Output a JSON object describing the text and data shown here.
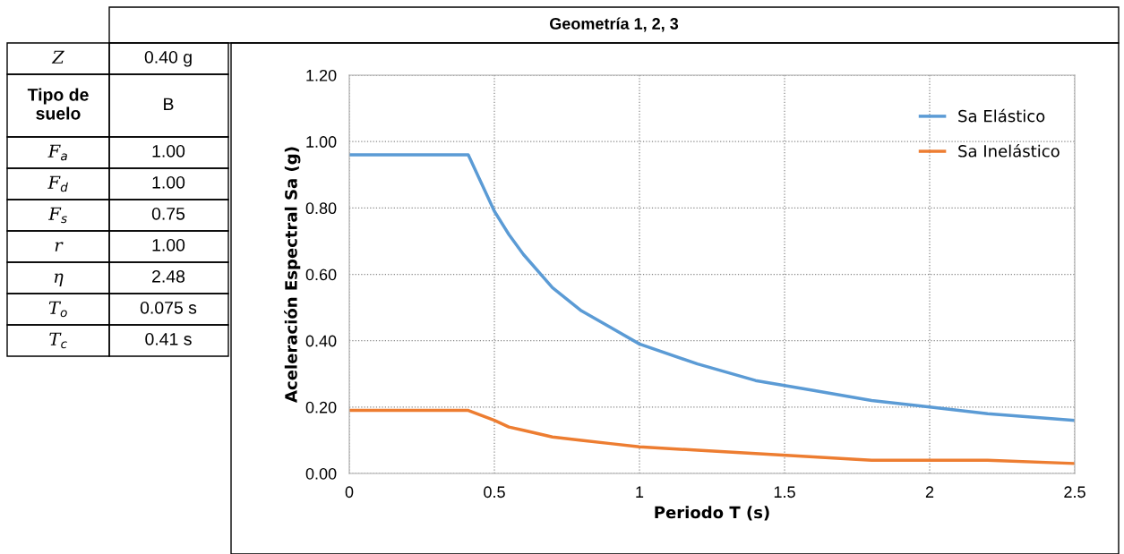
{
  "chart_data": {
    "type": "line",
    "title": "Geometría 1, 2, 3",
    "xlabel": "Periodo T (s)",
    "ylabel": "Aceleración Espectral Sa (g)",
    "annotations": [
      "Z",
      "0.40 g",
      "Tipo de\nsuelo",
      "B",
      "F$_{a}$",
      "1.00",
      "F$_{d}$",
      "1.00",
      "F$_{s}$",
      "0.75",
      "r",
      "1.00",
      "η",
      "2.48",
      "T$_{o}$",
      "0.075 s",
      "T$_{c}$",
      "0.41 s"
    ],
    "x": [
      0,
      0.41,
      0.5,
      0.55,
      0.6,
      0.7,
      0.8,
      0.9,
      1.0,
      1.2,
      1.4,
      1.6,
      1.8,
      2.0,
      2.2,
      2.5
    ],
    "series": [
      {
        "name": "Sa Elástico",
        "color": "#5b9bd5",
        "values": [
          0.96,
          0.96,
          0.79,
          0.72,
          0.66,
          0.56,
          0.49,
          0.44,
          0.39,
          0.33,
          0.28,
          0.25,
          0.22,
          0.2,
          0.18,
          0.16
        ]
      },
      {
        "name": "Sa Inelástico",
        "color": "#ed7d31",
        "values": [
          0.19,
          0.19,
          0.16,
          0.14,
          0.13,
          0.11,
          0.1,
          0.09,
          0.08,
          0.07,
          0.06,
          0.05,
          0.04,
          0.04,
          0.04,
          0.03
        ]
      }
    ],
    "xlim": [
      0,
      2.5
    ],
    "xticks": [
      0,
      0.5,
      1,
      1.5,
      2,
      2.5
    ],
    "ylim": [
      0,
      1.2
    ],
    "yticks": [
      {
        "value": 0,
        "label": "0.00"
      },
      {
        "value": 0.2,
        "label": "0.20"
      },
      {
        "value": 0.4,
        "label": "0.40"
      },
      {
        "value": 0.6,
        "label": "0.60"
      },
      {
        "value": 0.8,
        "label": "0.80"
      },
      {
        "value": 1.0,
        "label": "1.00"
      },
      {
        "value": 1.2,
        "label": "1.20"
      }
    ],
    "grid": true,
    "legend": "top right",
    "marker": "none",
    "line_style": "solid"
  }
}
